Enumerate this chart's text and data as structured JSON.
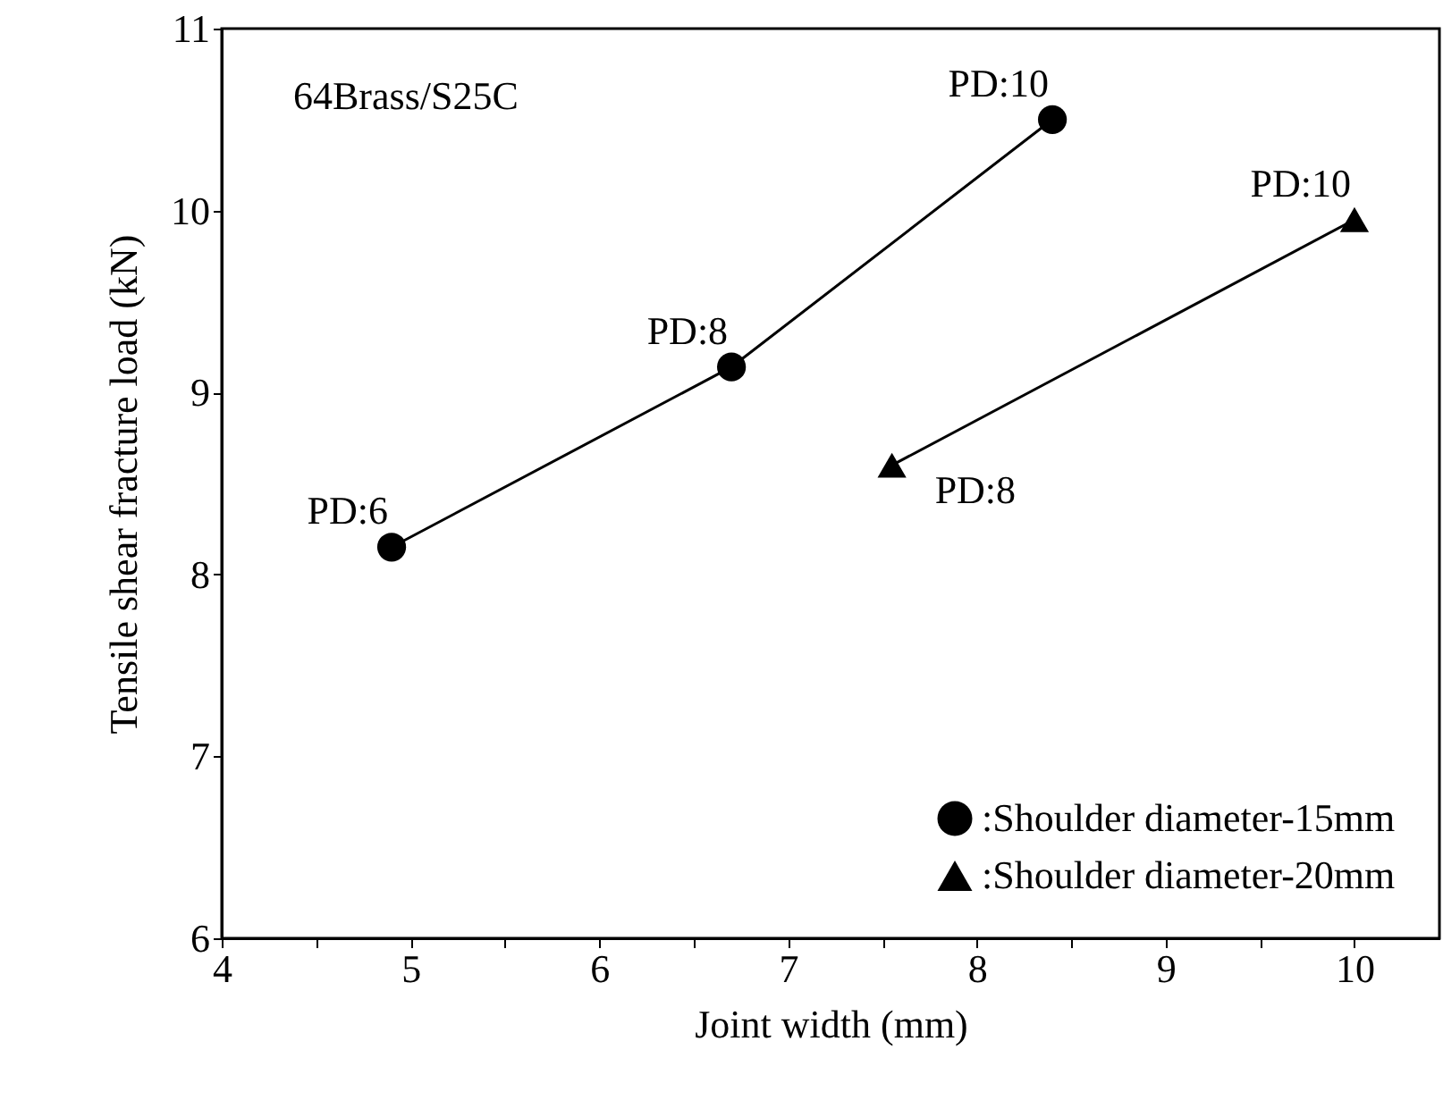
{
  "chart_data": {
    "type": "line",
    "xlabel": "Joint width (mm)",
    "ylabel": "Tensile shear fracture load (kN)",
    "xlim": [
      4,
      10.45
    ],
    "ylim": [
      6,
      11
    ],
    "xticks": [
      4,
      {
        "value": 4.5,
        "label": null
      },
      5,
      {
        "value": 5.5,
        "label": null
      },
      6,
      {
        "value": 6.5,
        "label": null
      },
      7,
      {
        "value": 7.5,
        "label": null
      },
      8,
      {
        "value": 8.5,
        "label": null
      },
      9,
      {
        "value": 9.5,
        "label": null
      },
      10
    ],
    "yticks": [
      6,
      7,
      8,
      9,
      10,
      11
    ],
    "grid": false,
    "legend": "bottom right",
    "line_style": "solid",
    "series": [
      {
        "name": ":Shoulder diameter-15mm",
        "color": "#000000",
        "marker": "circle",
        "x": [
          4.9,
          6.7,
          8.4
        ],
        "values": [
          8.15,
          9.14,
          10.5
        ]
      },
      {
        "name": ":Shoulder diameter-20mm",
        "color": "#000000",
        "marker": "triangle",
        "x": [
          7.55,
          10.0
        ],
        "values": [
          8.6,
          9.95
        ]
      }
    ],
    "annotations": [
      "64Brass/S25C",
      {
        "text": "PD:6",
        "x": 4.9,
        "y": 8.15
      },
      {
        "text": "PD:8",
        "x": 6.7,
        "y": 9.14
      },
      {
        "text": "PD:10",
        "x": 8.4,
        "y": 10.5
      },
      {
        "text": "PD:8",
        "x": 7.55,
        "y": 8.6
      },
      {
        "text": "PD:10",
        "x": 10.0,
        "y": 9.95
      }
    ]
  }
}
